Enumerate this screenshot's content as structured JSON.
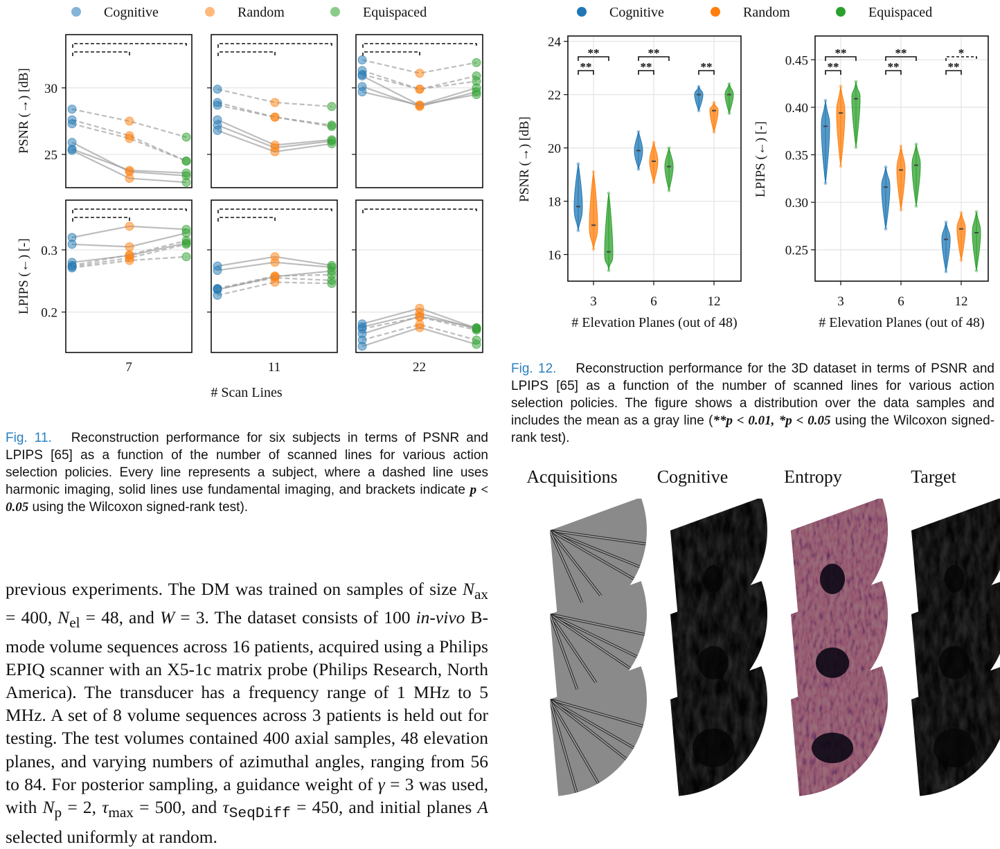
{
  "fig11": {
    "legend": [
      {
        "name": "Cognitive",
        "color": "#1f77b4"
      },
      {
        "name": "Random",
        "color": "#ff7f0e"
      },
      {
        "name": "Equispaced",
        "color": "#2ca02c"
      }
    ],
    "panel_x_labels": [
      "7",
      "11",
      "22"
    ],
    "xlabel": "# Scan Lines",
    "row_ylabels": [
      "PSNR (→) [dB]",
      "LPIPS (←) [-]"
    ],
    "psnr_ticks": [
      "25",
      "30"
    ],
    "lpips_ticks": [
      "0.2",
      "0.3"
    ],
    "caption_label": "Fig. 11.",
    "caption_text": "Reconstruction performance for six subjects in terms of PSNR and LPIPS [65] as a function of the number of scanned lines for various action selection policies. Every line represents a subject, where a dashed line uses harmonic imaging, solid lines use fundamental imaging, and brackets indicate",
    "caption_math": "p < 0.05",
    "caption_tail": "using the Wilcoxon signed-rank test)."
  },
  "fig12": {
    "legend": [
      {
        "name": "Cognitive",
        "color": "#1f77b4"
      },
      {
        "name": "Random",
        "color": "#ff7f0e"
      },
      {
        "name": "Equispaced",
        "color": "#2ca02c"
      }
    ],
    "xlabel": "# Elevation Planes (out of 48)",
    "x_ticks": [
      "3",
      "6",
      "12"
    ],
    "psnr_ylabel": "PSNR (→) [dB]",
    "psnr_ticks": [
      "16",
      "18",
      "20",
      "22",
      "24"
    ],
    "lpips_ylabel": "LPIPS (←) [-]",
    "lpips_ticks": [
      "0.25",
      "0.30",
      "0.35",
      "0.40",
      "0.45"
    ],
    "sig_double": "**",
    "sig_single": "*",
    "caption_label": "Fig. 12.",
    "caption_text": "Reconstruction performance for the 3D dataset in terms of PSNR and LPIPS [65] as a function of the number of scanned lines for various action selection policies. The figure shows a distribution over the data samples and includes the mean as a gray line (",
    "caption_math1": "**p < 0.01,",
    "caption_math2": "*p < 0.05",
    "caption_tail": "using the Wilcoxon signed-rank test)."
  },
  "chart_data": [
    {
      "type": "line",
      "xlabel": "# Scan Lines",
      "ylabel": "PSNR (→) [dB]",
      "panels": [
        "7",
        "11",
        "22"
      ],
      "categories": [
        "Cognitive",
        "Random",
        "Equispaced"
      ],
      "ylim": [
        22.5,
        34
      ],
      "subjects": [
        {
          "panel": "7",
          "dashed": true,
          "values": [
            28.4,
            27.5,
            26.3
          ]
        },
        {
          "panel": "7",
          "dashed": true,
          "values": [
            27.6,
            26.4,
            24.5
          ]
        },
        {
          "panel": "7",
          "dashed": true,
          "values": [
            27.3,
            26.2,
            24.5
          ]
        },
        {
          "panel": "7",
          "dashed": false,
          "values": [
            25.9,
            23.7,
            23.4
          ]
        },
        {
          "panel": "7",
          "dashed": false,
          "values": [
            25.4,
            23.8,
            23.6
          ]
        },
        {
          "panel": "7",
          "dashed": false,
          "values": [
            25.3,
            23.2,
            22.9
          ]
        },
        {
          "panel": "11",
          "dashed": true,
          "values": [
            29.9,
            28.9,
            28.6
          ]
        },
        {
          "panel": "11",
          "dashed": true,
          "values": [
            28.9,
            27.8,
            27.2
          ]
        },
        {
          "panel": "11",
          "dashed": true,
          "values": [
            28.7,
            27.8,
            27.1
          ]
        },
        {
          "panel": "11",
          "dashed": false,
          "values": [
            27.6,
            25.7,
            26.1
          ]
        },
        {
          "panel": "11",
          "dashed": false,
          "values": [
            27.2,
            25.5,
            26.0
          ]
        },
        {
          "panel": "11",
          "dashed": false,
          "values": [
            26.8,
            25.2,
            25.8
          ]
        },
        {
          "panel": "22",
          "dashed": true,
          "values": [
            32.1,
            31.1,
            31.9
          ]
        },
        {
          "panel": "22",
          "dashed": true,
          "values": [
            31.3,
            29.9,
            30.9
          ]
        },
        {
          "panel": "22",
          "dashed": true,
          "values": [
            31.0,
            29.9,
            30.5
          ]
        },
        {
          "panel": "22",
          "dashed": false,
          "values": [
            30.9,
            28.7,
            30.0
          ]
        },
        {
          "panel": "22",
          "dashed": false,
          "values": [
            30.1,
            28.6,
            29.7
          ]
        },
        {
          "panel": "22",
          "dashed": false,
          "values": [
            29.7,
            28.7,
            29.5
          ]
        }
      ]
    },
    {
      "type": "line",
      "xlabel": "# Scan Lines",
      "ylabel": "LPIPS (←) [-]",
      "panels": [
        "7",
        "11",
        "22"
      ],
      "categories": [
        "Cognitive",
        "Random",
        "Equispaced"
      ],
      "ylim": [
        0.135,
        0.38
      ],
      "subjects": [
        {
          "panel": "7",
          "dashed": false,
          "values": [
            0.32,
            0.338,
            0.333
          ]
        },
        {
          "panel": "7",
          "dashed": false,
          "values": [
            0.309,
            0.305,
            0.327
          ]
        },
        {
          "panel": "7",
          "dashed": false,
          "values": [
            0.28,
            0.291,
            0.311
          ]
        },
        {
          "panel": "7",
          "dashed": true,
          "values": [
            0.273,
            0.287,
            0.309
          ]
        },
        {
          "panel": "7",
          "dashed": true,
          "values": [
            0.271,
            0.283,
            0.289
          ]
        },
        {
          "panel": "7",
          "dashed": true,
          "values": [
            0.275,
            0.292,
            0.315
          ]
        },
        {
          "panel": "11",
          "dashed": false,
          "values": [
            0.274,
            0.289,
            0.275
          ]
        },
        {
          "panel": "11",
          "dashed": false,
          "values": [
            0.267,
            0.28,
            0.272
          ]
        },
        {
          "panel": "11",
          "dashed": true,
          "values": [
            0.238,
            0.258,
            0.26
          ]
        },
        {
          "panel": "11",
          "dashed": true,
          "values": [
            0.237,
            0.255,
            0.251
          ]
        },
        {
          "panel": "11",
          "dashed": false,
          "values": [
            0.236,
            0.257,
            0.266
          ]
        },
        {
          "panel": "11",
          "dashed": true,
          "values": [
            0.227,
            0.248,
            0.246
          ]
        },
        {
          "panel": "22",
          "dashed": false,
          "values": [
            0.181,
            0.206,
            0.174
          ]
        },
        {
          "panel": "22",
          "dashed": false,
          "values": [
            0.176,
            0.198,
            0.173
          ]
        },
        {
          "panel": "22",
          "dashed": true,
          "values": [
            0.173,
            0.192,
            0.171
          ]
        },
        {
          "panel": "22",
          "dashed": false,
          "values": [
            0.165,
            0.193,
            0.175
          ]
        },
        {
          "panel": "22",
          "dashed": true,
          "values": [
            0.155,
            0.18,
            0.155
          ]
        },
        {
          "panel": "22",
          "dashed": false,
          "values": [
            0.145,
            0.175,
            0.148
          ]
        }
      ]
    },
    {
      "type": "violin",
      "xlabel": "# Elevation Planes (out of 48)",
      "ylabel": "PSNR (→) [dB]",
      "ylim": [
        15,
        24.2
      ],
      "categories": [
        "3",
        "6",
        "12"
      ],
      "series": [
        {
          "name": "Cognitive",
          "min": [
            16.9,
            19.2,
            21.4
          ],
          "max": [
            19.4,
            20.6,
            22.3
          ],
          "mean": [
            17.8,
            19.9,
            22.0
          ]
        },
        {
          "name": "Random",
          "min": [
            16.2,
            18.7,
            20.6
          ],
          "max": [
            19.1,
            20.2,
            21.7
          ],
          "mean": [
            17.1,
            19.5,
            21.4
          ]
        },
        {
          "name": "Equispaced",
          "min": [
            15.4,
            18.4,
            21.3
          ],
          "max": [
            18.3,
            20.0,
            22.4
          ],
          "mean": [
            16.1,
            19.3,
            22.0
          ]
        }
      ]
    },
    {
      "type": "violin",
      "xlabel": "# Elevation Planes (out of 48)",
      "ylabel": "LPIPS (←) [-]",
      "ylim": [
        0.217,
        0.475
      ],
      "categories": [
        "3",
        "6",
        "12"
      ],
      "series": [
        {
          "name": "Cognitive",
          "min": [
            0.32,
            0.272,
            0.227
          ],
          "max": [
            0.407,
            0.337,
            0.279
          ],
          "mean": [
            0.38,
            0.316,
            0.261
          ]
        },
        {
          "name": "Random",
          "min": [
            0.338,
            0.292,
            0.239
          ],
          "max": [
            0.422,
            0.359,
            0.289
          ],
          "mean": [
            0.394,
            0.334,
            0.272
          ]
        },
        {
          "name": "Equispaced",
          "min": [
            0.358,
            0.296,
            0.228
          ],
          "max": [
            0.427,
            0.361,
            0.29
          ],
          "mean": [
            0.409,
            0.339,
            0.268
          ]
        }
      ]
    }
  ],
  "images": {
    "headers": [
      "Acquisitions",
      "Cognitive",
      "Entropy",
      "Target"
    ]
  },
  "body": {
    "p1": "previous experiments. The DM was trained on samples of size",
    "p2": "N",
    "p2s": "ax",
    "p3": " = 400, ",
    "p4": "N",
    "p4s": "el",
    "p5": " = 48, and ",
    "p6": "W",
    "p7": " = 3. The dataset consists of 100 ",
    "p8": "in-vivo",
    "p9": " B-mode volume sequences across 16 patients, acquired using a Philips EPIQ scanner with an X5-1c matrix probe (Philips Research, North America). The transducer has a frequency range of 1 MHz to 5 MHz. A set of 8 volume sequences across 3 patients is held out for testing. The test volumes contained 400 axial samples, 48 elevation planes, and varying numbers of azimuthal angles, ranging from 56 to 84. For posterior sampling, a guidance weight of ",
    "p10": "γ",
    "p11": " = 3 was used, with ",
    "p12": "N",
    "p12s": "p",
    "p13": " = 2, ",
    "p14": "τ",
    "p14s": "max",
    "p15": " = 500, and ",
    "p16": "τ",
    "p16s": "SeqDiff",
    "p17": " = 450, and initial planes ",
    "p18": "A",
    "p19": " selected uniformly at random."
  }
}
